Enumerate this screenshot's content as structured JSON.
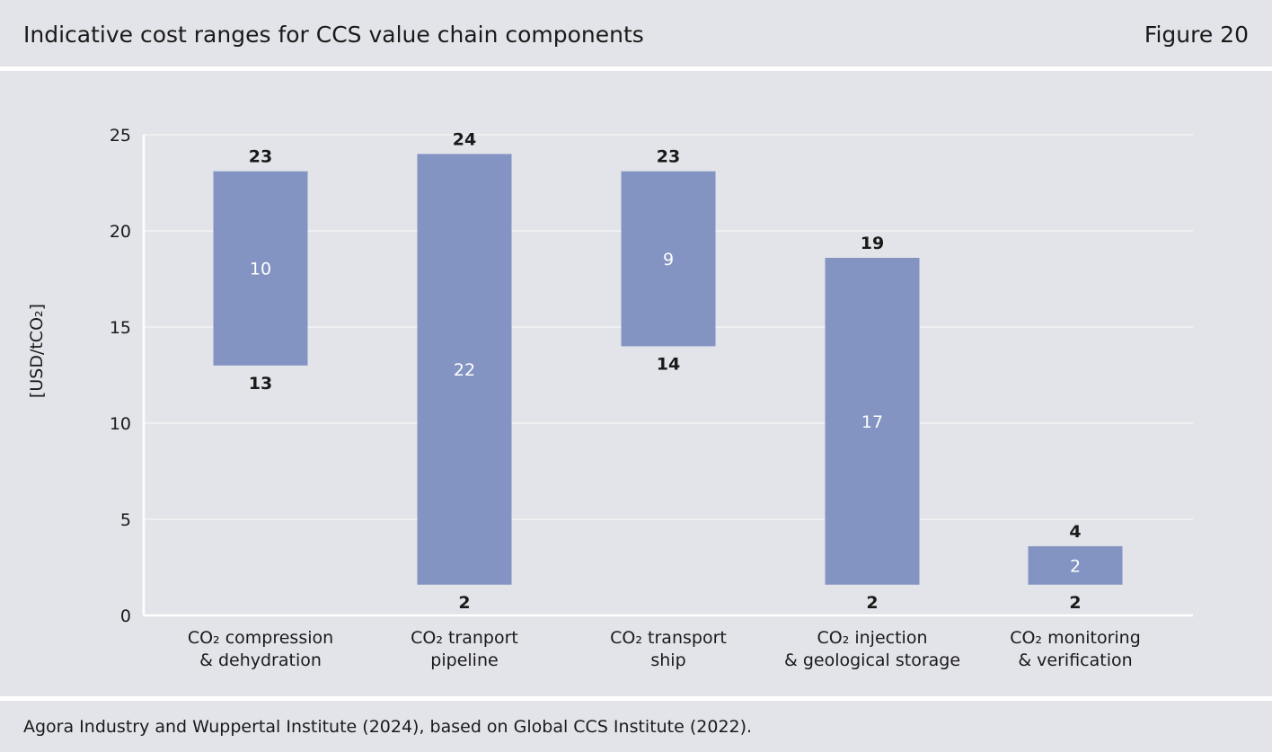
{
  "header": {
    "title": "Indicative cost ranges for CCS value chain components",
    "figure_label": "Figure 20"
  },
  "footer": {
    "source": "Agora Industry and Wuppertal Institute (2024), based on Global CCS Institute (2022)."
  },
  "chart_data": {
    "type": "bar",
    "subtype": "floating-range",
    "title": "Indicative cost ranges for CCS value chain components",
    "ylabel": "[USD/tCO₂]",
    "ylim": [
      0,
      25
    ],
    "yticks": [
      0,
      5,
      10,
      15,
      20,
      25
    ],
    "grid": true,
    "bar_color": "#8394c2",
    "categories": [
      [
        "CO₂ compression",
        "& dehydration"
      ],
      [
        "CO₂ tranport",
        "pipeline"
      ],
      [
        "CO₂ transport",
        "ship"
      ],
      [
        "CO₂ injection",
        "& geological storage"
      ],
      [
        "CO₂ monitoring",
        "& verification"
      ]
    ],
    "low": [
      13,
      2,
      14,
      2,
      2
    ],
    "high": [
      23,
      24,
      23,
      19,
      4
    ],
    "range": [
      10,
      22,
      9,
      17,
      2
    ],
    "bar_low_drawn": [
      13,
      1.6,
      14,
      1.6,
      1.6
    ],
    "bar_high_drawn": [
      23.1,
      24,
      23.1,
      18.6,
      3.6
    ]
  }
}
